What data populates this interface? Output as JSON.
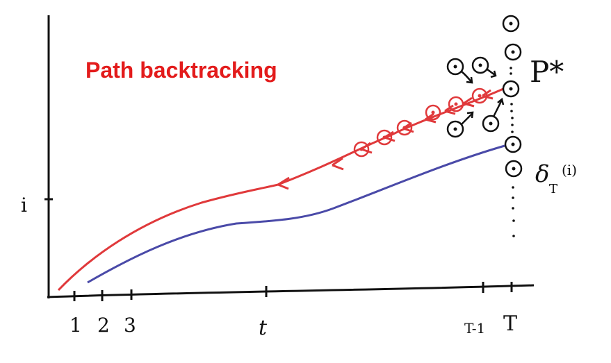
{
  "title": "Path backtracking",
  "colors": {
    "title": "#e31b1b",
    "backtrack_path": "#e0393b",
    "delta_path": "#4a4aa8",
    "ink": "#111111"
  },
  "x_axis": {
    "tick_labels": [
      "1",
      "2",
      "3",
      "t",
      "T-1",
      "T"
    ]
  },
  "y_axis": {
    "tick_label": "i"
  },
  "labels": {
    "p_star": "P*",
    "delta_symbol": "δ",
    "delta_subscript": "T",
    "delta_arg": "(i)"
  },
  "icons": [
    "state-node-icon",
    "arrow-head-icon"
  ]
}
